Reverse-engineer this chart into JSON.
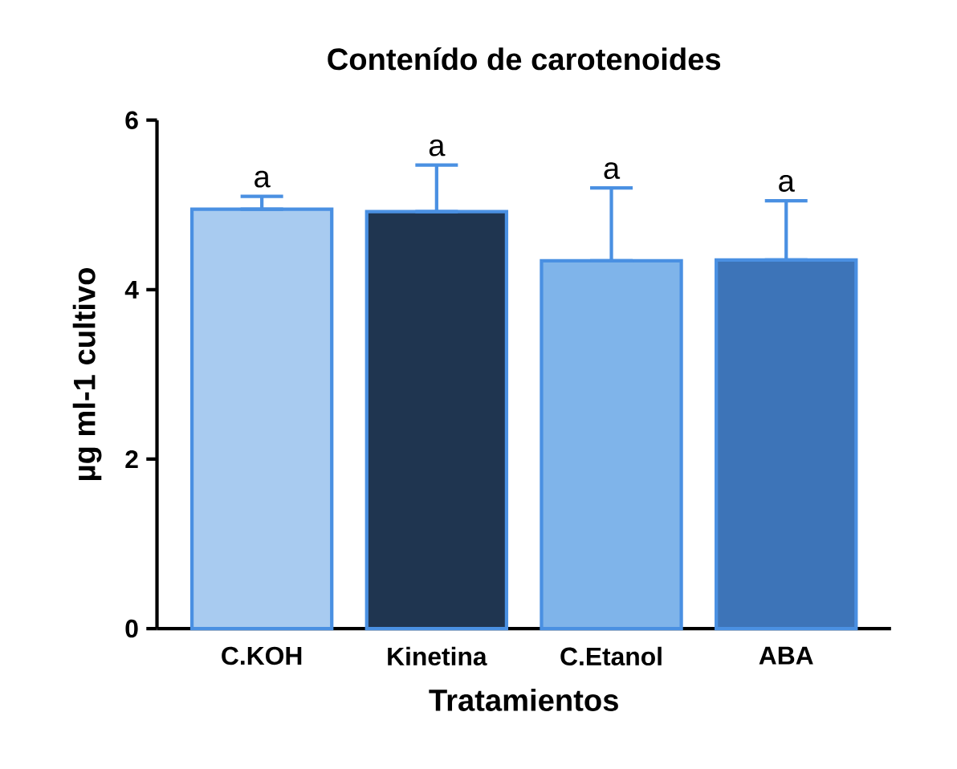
{
  "chart_data": {
    "type": "bar",
    "title": "Contenído de carotenoides",
    "xlabel": "Tratamientos",
    "ylabel": "µg ml-1 cultivo",
    "categories": [
      "C.KOH",
      "Kinetina",
      "C.Etanol",
      "ABA"
    ],
    "values": [
      4.95,
      4.92,
      4.34,
      4.35
    ],
    "errors": [
      [
        4.95,
        5.1
      ],
      [
        4.92,
        5.47
      ],
      [
        4.34,
        5.2
      ],
      [
        4.35,
        5.05
      ]
    ],
    "colors": [
      "#a8cbf0",
      "#1f3550",
      "#7fb4ea",
      "#3d74b8"
    ],
    "ylim": [
      0,
      6
    ],
    "yticks": [
      0,
      2,
      4,
      6
    ],
    "grid": false,
    "annotations": [
      "a",
      "a",
      "a",
      "a"
    ]
  }
}
